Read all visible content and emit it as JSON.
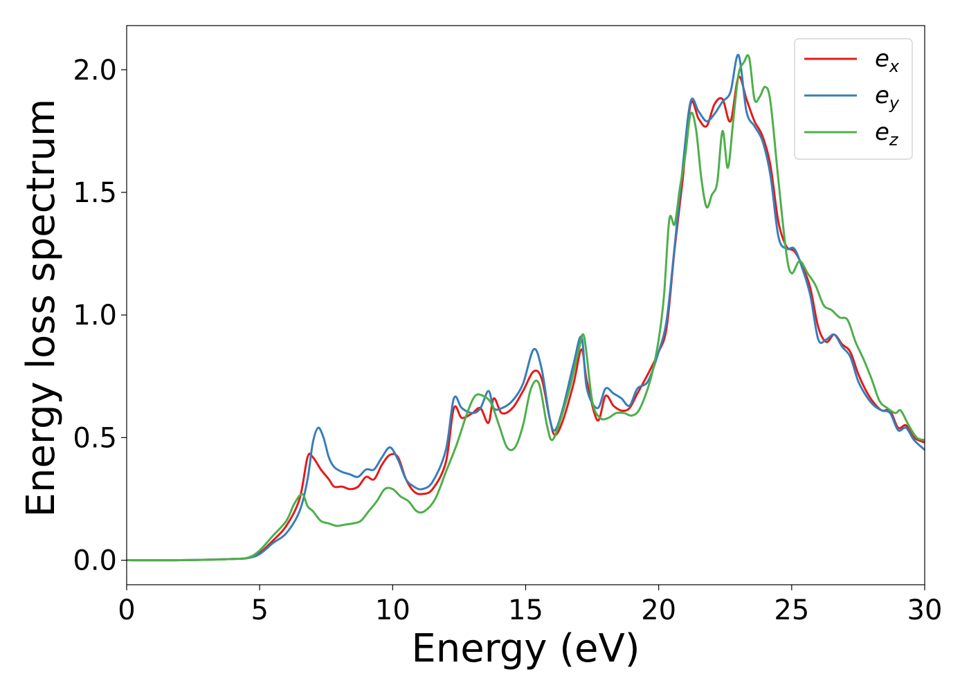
{
  "chart_data": {
    "type": "line",
    "xlabel": "Energy (eV)",
    "ylabel": "Energy loss spectrum",
    "xlim": [
      0,
      30
    ],
    "ylim": [
      -0.1,
      2.18
    ],
    "xticks": [
      0,
      5,
      10,
      15,
      20,
      25,
      30
    ],
    "xtick_labels": [
      "0",
      "5",
      "10",
      "15",
      "20",
      "25",
      "30"
    ],
    "yticks": [
      0.0,
      0.5,
      1.0,
      1.5,
      2.0
    ],
    "ytick_labels": [
      "0.0",
      "0.5",
      "1.0",
      "1.5",
      "2.0"
    ],
    "grid": false,
    "legend_position": "top-right",
    "series": [
      {
        "name": "e_x",
        "label_main": "e",
        "label_sub": "x",
        "color": "#e41a1c",
        "x": [
          0,
          2,
          4,
          4.6,
          5.0,
          5.5,
          6.0,
          6.5,
          6.8,
          7.0,
          7.3,
          7.6,
          7.8,
          8.1,
          8.4,
          8.7,
          9.0,
          9.3,
          9.6,
          9.9,
          10.2,
          10.5,
          10.8,
          11.1,
          11.5,
          12.0,
          12.3,
          12.6,
          13.0,
          13.3,
          13.6,
          13.8,
          14.1,
          14.5,
          14.9,
          15.3,
          15.6,
          15.9,
          16.1,
          16.4,
          16.8,
          17.1,
          17.3,
          17.7,
          18.0,
          18.3,
          18.6,
          18.9,
          19.2,
          19.6,
          20.0,
          20.3,
          20.6,
          20.9,
          21.2,
          21.5,
          21.8,
          22.1,
          22.4,
          22.7,
          23.0,
          23.3,
          23.6,
          23.9,
          24.2,
          24.5,
          24.8,
          25.1,
          25.4,
          25.7,
          26.0,
          26.3,
          26.6,
          26.9,
          27.2,
          27.5,
          27.8,
          28.1,
          28.4,
          28.7,
          29.0,
          29.3,
          29.6,
          30.0
        ],
        "y": [
          0,
          0,
          0.005,
          0.01,
          0.03,
          0.08,
          0.14,
          0.25,
          0.42,
          0.42,
          0.37,
          0.33,
          0.3,
          0.3,
          0.29,
          0.3,
          0.34,
          0.33,
          0.39,
          0.43,
          0.42,
          0.33,
          0.28,
          0.27,
          0.29,
          0.4,
          0.62,
          0.58,
          0.6,
          0.62,
          0.56,
          0.66,
          0.6,
          0.62,
          0.69,
          0.77,
          0.74,
          0.58,
          0.51,
          0.57,
          0.72,
          0.86,
          0.73,
          0.57,
          0.67,
          0.63,
          0.61,
          0.62,
          0.68,
          0.76,
          0.85,
          0.95,
          1.27,
          1.55,
          1.86,
          1.8,
          1.77,
          1.86,
          1.88,
          1.79,
          1.97,
          1.88,
          1.79,
          1.73,
          1.61,
          1.38,
          1.28,
          1.26,
          1.2,
          1.11,
          0.95,
          0.89,
          0.92,
          0.88,
          0.85,
          0.76,
          0.69,
          0.64,
          0.61,
          0.61,
          0.54,
          0.55,
          0.5,
          0.48
        ]
      },
      {
        "name": "e_y",
        "label_main": "e",
        "label_sub": "y",
        "color": "#377eb8",
        "x": [
          0,
          2,
          4,
          4.6,
          5.0,
          5.5,
          6.0,
          6.5,
          6.8,
          7.0,
          7.2,
          7.4,
          7.6,
          7.8,
          8.1,
          8.4,
          8.7,
          9.0,
          9.3,
          9.6,
          9.9,
          10.2,
          10.5,
          10.8,
          11.1,
          11.5,
          12.0,
          12.3,
          12.6,
          13.0,
          13.3,
          13.6,
          13.8,
          14.1,
          14.5,
          14.9,
          15.3,
          15.6,
          15.9,
          16.1,
          16.4,
          16.8,
          17.1,
          17.3,
          17.7,
          18.0,
          18.3,
          18.6,
          18.9,
          19.2,
          19.6,
          20.0,
          20.3,
          20.6,
          20.9,
          21.2,
          21.5,
          21.8,
          22.1,
          22.4,
          22.7,
          23.0,
          23.3,
          23.6,
          23.9,
          24.2,
          24.5,
          24.8,
          25.1,
          25.4,
          25.7,
          26.0,
          26.3,
          26.6,
          26.9,
          27.2,
          27.5,
          27.8,
          28.1,
          28.4,
          28.7,
          29.0,
          29.3,
          29.6,
          30.0
        ],
        "y": [
          0,
          0,
          0.005,
          0.01,
          0.025,
          0.07,
          0.11,
          0.2,
          0.33,
          0.48,
          0.54,
          0.5,
          0.42,
          0.38,
          0.36,
          0.35,
          0.34,
          0.37,
          0.37,
          0.42,
          0.46,
          0.41,
          0.33,
          0.3,
          0.29,
          0.32,
          0.45,
          0.66,
          0.62,
          0.6,
          0.62,
          0.69,
          0.62,
          0.62,
          0.65,
          0.72,
          0.86,
          0.78,
          0.58,
          0.53,
          0.62,
          0.8,
          0.91,
          0.7,
          0.62,
          0.7,
          0.68,
          0.66,
          0.63,
          0.7,
          0.73,
          0.85,
          0.98,
          1.28,
          1.6,
          1.87,
          1.83,
          1.79,
          1.82,
          1.87,
          1.91,
          2.06,
          1.83,
          1.77,
          1.71,
          1.57,
          1.32,
          1.27,
          1.27,
          1.19,
          1.08,
          0.9,
          0.9,
          0.92,
          0.87,
          0.83,
          0.73,
          0.67,
          0.63,
          0.61,
          0.6,
          0.53,
          0.54,
          0.49,
          0.45
        ]
      },
      {
        "name": "e_z",
        "label_main": "e",
        "label_sub": "z",
        "color": "#4daf4a",
        "x": [
          0,
          2,
          4,
          4.6,
          5.0,
          5.5,
          6.0,
          6.3,
          6.6,
          6.8,
          7.0,
          7.3,
          7.6,
          7.9,
          8.2,
          8.5,
          8.8,
          9.1,
          9.4,
          9.7,
          10.0,
          10.3,
          10.6,
          10.9,
          11.2,
          11.6,
          12.0,
          12.4,
          12.8,
          13.1,
          13.4,
          13.7,
          14.0,
          14.3,
          14.6,
          14.9,
          15.2,
          15.5,
          15.8,
          16.0,
          16.3,
          16.7,
          17.0,
          17.2,
          17.5,
          17.8,
          18.1,
          18.4,
          18.7,
          19.0,
          19.3,
          19.7,
          20.0,
          20.2,
          20.4,
          20.6,
          20.8,
          21.0,
          21.2,
          21.4,
          21.6,
          21.8,
          22.0,
          22.2,
          22.4,
          22.6,
          22.8,
          23.0,
          23.2,
          23.4,
          23.6,
          23.8,
          24.0,
          24.2,
          24.5,
          24.8,
          25.0,
          25.3,
          25.6,
          25.9,
          26.2,
          26.5,
          26.8,
          27.1,
          27.4,
          27.7,
          28.0,
          28.3,
          28.6,
          28.9,
          29.1,
          29.4,
          29.7,
          30.0
        ],
        "y": [
          0,
          0,
          0.005,
          0.012,
          0.04,
          0.1,
          0.16,
          0.23,
          0.27,
          0.22,
          0.2,
          0.16,
          0.15,
          0.14,
          0.145,
          0.15,
          0.16,
          0.2,
          0.24,
          0.29,
          0.29,
          0.26,
          0.24,
          0.2,
          0.2,
          0.25,
          0.36,
          0.47,
          0.6,
          0.67,
          0.67,
          0.64,
          0.55,
          0.46,
          0.46,
          0.55,
          0.7,
          0.72,
          0.55,
          0.49,
          0.57,
          0.72,
          0.86,
          0.91,
          0.65,
          0.58,
          0.58,
          0.6,
          0.6,
          0.59,
          0.62,
          0.74,
          0.9,
          1.08,
          1.39,
          1.37,
          1.52,
          1.65,
          1.82,
          1.76,
          1.56,
          1.44,
          1.49,
          1.54,
          1.75,
          1.6,
          1.79,
          1.98,
          2.03,
          2.05,
          1.88,
          1.89,
          1.93,
          1.87,
          1.55,
          1.25,
          1.17,
          1.22,
          1.17,
          1.12,
          1.04,
          1.02,
          0.99,
          0.98,
          0.89,
          0.82,
          0.74,
          0.65,
          0.62,
          0.6,
          0.61,
          0.55,
          0.5,
          0.49
        ]
      }
    ]
  }
}
